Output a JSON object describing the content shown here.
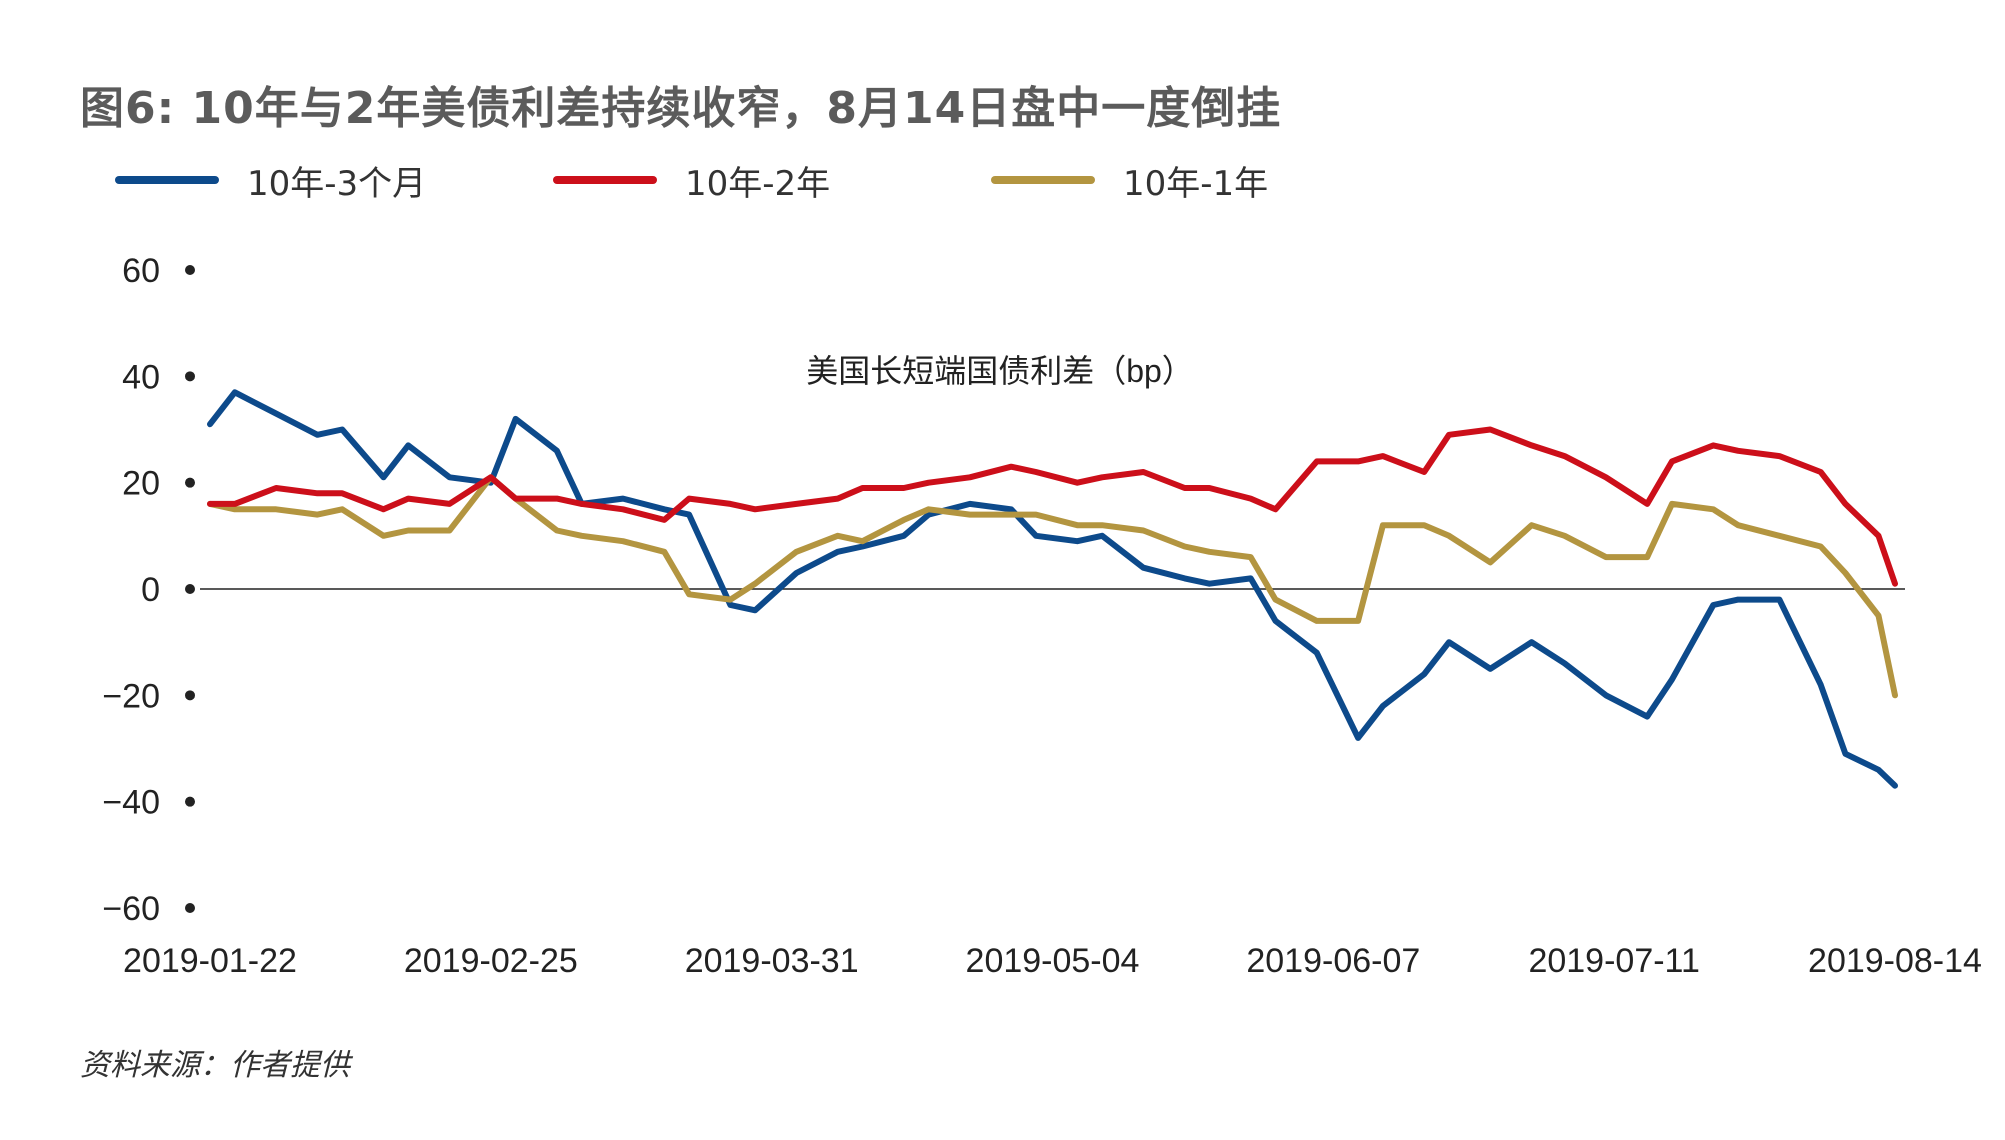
{
  "title": "图6: 10年与2年美债利差持续收窄，8月14日盘中一度倒挂",
  "source": "资料来源：作者提供",
  "colors": {
    "blue": "#0d4a8b",
    "red": "#cc0f1a",
    "gold": "#b39540",
    "axis": "#222222"
  },
  "chart_data": {
    "type": "line",
    "subtitle": "美国长短端国债利差（bp）",
    "ylim": [
      -60,
      60
    ],
    "y_ticks": [
      60,
      40,
      20,
      0,
      -20,
      -40,
      -60
    ],
    "y_tick_labels": [
      "60",
      "40",
      "20",
      "0",
      "−20",
      "−40",
      "−60"
    ],
    "x_tick_labels": [
      "2019-01-22",
      "2019-02-25",
      "2019-03-31",
      "2019-05-04",
      "2019-06-07",
      "2019-07-11",
      "2019-08-14"
    ],
    "grid": false,
    "legend_position": "top",
    "x": [
      "2019-01-22",
      "2019-01-25",
      "2019-01-30",
      "2019-02-04",
      "2019-02-07",
      "2019-02-12",
      "2019-02-15",
      "2019-02-20",
      "2019-02-25",
      "2019-02-28",
      "2019-03-05",
      "2019-03-08",
      "2019-03-13",
      "2019-03-18",
      "2019-03-21",
      "2019-03-26",
      "2019-03-29",
      "2019-04-03",
      "2019-04-08",
      "2019-04-11",
      "2019-04-16",
      "2019-04-19",
      "2019-04-24",
      "2019-04-29",
      "2019-05-02",
      "2019-05-07",
      "2019-05-10",
      "2019-05-15",
      "2019-05-20",
      "2019-05-23",
      "2019-05-28",
      "2019-05-31",
      "2019-06-05",
      "2019-06-10",
      "2019-06-13",
      "2019-06-18",
      "2019-06-21",
      "2019-06-26",
      "2019-07-01",
      "2019-07-05",
      "2019-07-10",
      "2019-07-15",
      "2019-07-18",
      "2019-07-23",
      "2019-07-26",
      "2019-07-31",
      "2019-08-05",
      "2019-08-08",
      "2019-08-12",
      "2019-08-14"
    ],
    "series": [
      {
        "name": "10年-3个月",
        "color": "#0d4a8b",
        "values": [
          31,
          37,
          33,
          29,
          30,
          21,
          27,
          21,
          20,
          32,
          26,
          16,
          17,
          15,
          14,
          -3,
          -4,
          3,
          7,
          8,
          10,
          14,
          16,
          15,
          10,
          9,
          10,
          4,
          2,
          1,
          2,
          -6,
          -12,
          -28,
          -22,
          -16,
          -10,
          -15,
          -10,
          -14,
          -20,
          -24,
          -17,
          -3,
          -2,
          -2,
          -18,
          -31,
          -34,
          -37
        ]
      },
      {
        "name": "10年-2年",
        "color": "#cc0f1a",
        "values": [
          16,
          16,
          19,
          18,
          18,
          15,
          17,
          16,
          21,
          17,
          17,
          16,
          15,
          13,
          17,
          16,
          15,
          16,
          17,
          19,
          19,
          20,
          21,
          23,
          22,
          20,
          21,
          22,
          19,
          19,
          17,
          15,
          24,
          24,
          25,
          22,
          29,
          30,
          27,
          25,
          21,
          16,
          24,
          27,
          26,
          25,
          22,
          16,
          10,
          1
        ]
      },
      {
        "name": "10年-1年",
        "color": "#b39540",
        "values": [
          16,
          15,
          15,
          14,
          15,
          10,
          11,
          11,
          21,
          17,
          11,
          10,
          9,
          7,
          -1,
          -2,
          1,
          7,
          10,
          9,
          13,
          15,
          14,
          14,
          14,
          12,
          12,
          11,
          8,
          7,
          6,
          -2,
          -6,
          -6,
          12,
          12,
          10,
          5,
          12,
          10,
          6,
          6,
          16,
          15,
          12,
          10,
          8,
          3,
          -5,
          -20
        ]
      }
    ]
  }
}
